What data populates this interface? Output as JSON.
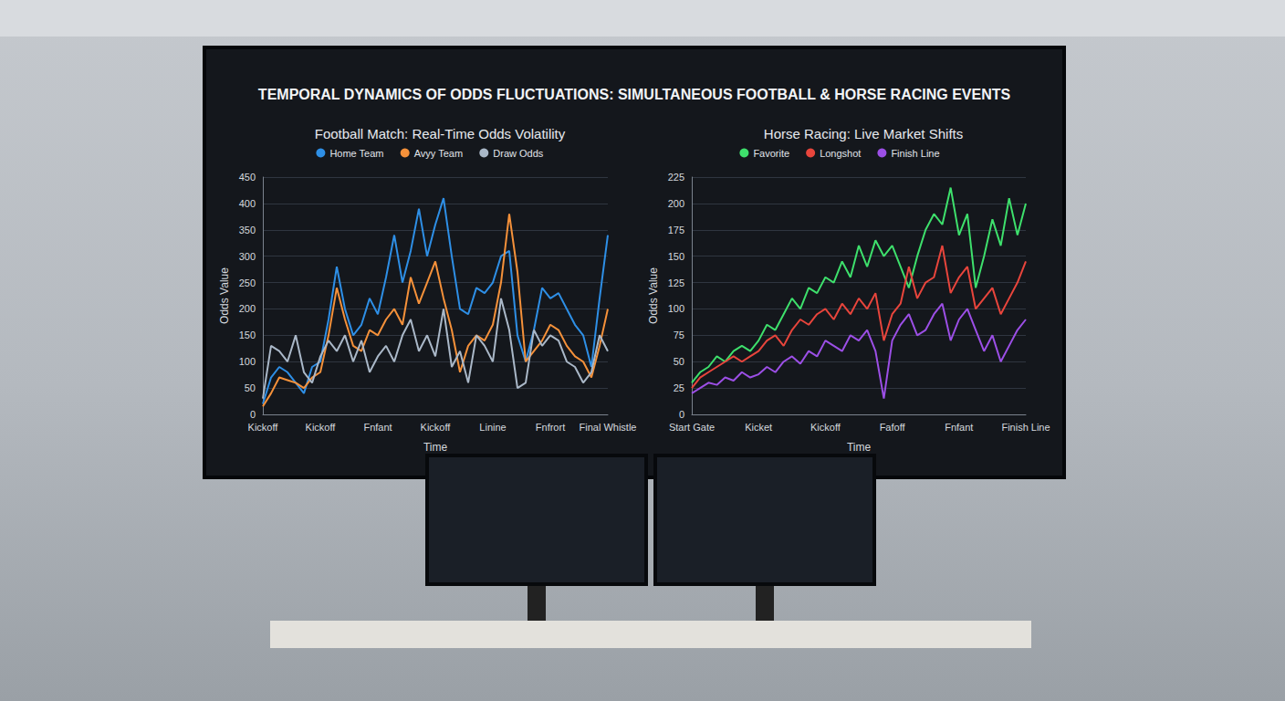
{
  "title": "TEMPORAL DYNAMICS OF ODDS FLUCTUATIONS: SIMULTANEOUS FOOTBALL & HORSE RACING EVENTS",
  "chart_data": [
    {
      "type": "line",
      "title": "Football Match: Real-Time Odds Volatility",
      "x_label": "Time",
      "y_label": "Odds Value",
      "categories": [
        "Kickoff",
        null,
        null,
        null,
        null,
        null,
        null,
        "Kickoff",
        null,
        null,
        null,
        null,
        null,
        null,
        "Fnfant",
        null,
        null,
        null,
        null,
        null,
        null,
        "Kickoff",
        null,
        null,
        null,
        null,
        null,
        null,
        "Linine",
        null,
        null,
        null,
        null,
        null,
        null,
        "Fnfrort",
        null,
        null,
        null,
        null,
        null,
        null,
        "Final Whistle"
      ],
      "series": [
        {
          "name": "Home Team",
          "color": "#2e8fe6",
          "values": [
            20,
            70,
            90,
            80,
            60,
            40,
            90,
            100,
            180,
            280,
            200,
            150,
            170,
            220,
            190,
            260,
            340,
            250,
            310,
            390,
            300,
            360,
            410,
            300,
            200,
            190,
            240,
            230,
            250,
            300,
            310,
            150,
            100,
            160,
            240,
            220,
            230,
            200,
            170,
            150,
            90,
            220,
            340
          ]
        },
        {
          "name": "Avyy Team",
          "color": "#f5913a",
          "values": [
            15,
            40,
            70,
            65,
            60,
            50,
            70,
            80,
            150,
            240,
            180,
            130,
            120,
            160,
            150,
            180,
            200,
            170,
            260,
            210,
            250,
            290,
            220,
            160,
            80,
            130,
            150,
            140,
            170,
            250,
            380,
            270,
            100,
            120,
            140,
            170,
            160,
            130,
            110,
            100,
            70,
            130,
            200
          ]
        },
        {
          "name": "Draw Odds",
          "color": "#aab8c8",
          "values": [
            30,
            130,
            120,
            100,
            150,
            80,
            60,
            110,
            140,
            120,
            150,
            100,
            140,
            80,
            110,
            130,
            100,
            150,
            180,
            120,
            150,
            110,
            200,
            90,
            120,
            60,
            150,
            130,
            100,
            220,
            160,
            50,
            60,
            160,
            130,
            150,
            140,
            100,
            90,
            60,
            80,
            150,
            120
          ]
        }
      ],
      "ylim": [
        0,
        450
      ],
      "yticks": [
        0,
        50,
        100,
        150,
        200,
        250,
        300,
        350,
        400,
        450
      ],
      "grid": true,
      "legend": "top"
    },
    {
      "type": "line",
      "title": "Horse Racing: Live Market Shifts",
      "x_label": "Time",
      "y_label": "Odds Value",
      "categories": [
        "Start Gate",
        null,
        null,
        null,
        null,
        null,
        null,
        null,
        "Kicket",
        null,
        null,
        null,
        null,
        null,
        null,
        null,
        "Kickoff",
        null,
        null,
        null,
        null,
        null,
        null,
        null,
        "Fafoff",
        null,
        null,
        null,
        null,
        null,
        null,
        null,
        "Fnfant",
        null,
        null,
        null,
        null,
        null,
        null,
        null,
        "Finish Line"
      ],
      "series": [
        {
          "name": "Favorite",
          "color": "#3ee06c",
          "values": [
            30,
            40,
            45,
            55,
            50,
            60,
            65,
            60,
            70,
            85,
            80,
            95,
            110,
            100,
            120,
            115,
            130,
            125,
            145,
            130,
            160,
            140,
            165,
            150,
            160,
            140,
            120,
            150,
            175,
            190,
            180,
            215,
            170,
            190,
            120,
            150,
            185,
            160,
            205,
            170,
            200
          ]
        },
        {
          "name": "Longshot",
          "color": "#e8453c",
          "values": [
            25,
            35,
            40,
            45,
            50,
            55,
            50,
            55,
            60,
            70,
            75,
            65,
            80,
            90,
            85,
            95,
            100,
            90,
            105,
            95,
            110,
            100,
            115,
            70,
            95,
            105,
            140,
            110,
            125,
            130,
            160,
            115,
            130,
            140,
            100,
            110,
            120,
            95,
            110,
            125,
            145
          ]
        },
        {
          "name": "Finish Line",
          "color": "#9c4fe6",
          "values": [
            20,
            25,
            30,
            28,
            35,
            32,
            40,
            35,
            38,
            45,
            40,
            50,
            55,
            48,
            60,
            55,
            70,
            65,
            60,
            75,
            70,
            80,
            60,
            15,
            70,
            85,
            95,
            75,
            80,
            95,
            105,
            70,
            90,
            100,
            80,
            60,
            75,
            50,
            65,
            80,
            90
          ]
        }
      ],
      "ylim": [
        0,
        225
      ],
      "yticks": [
        0,
        25,
        50,
        75,
        100,
        125,
        150,
        175,
        200,
        225
      ],
      "grid": true,
      "legend": "top"
    }
  ]
}
